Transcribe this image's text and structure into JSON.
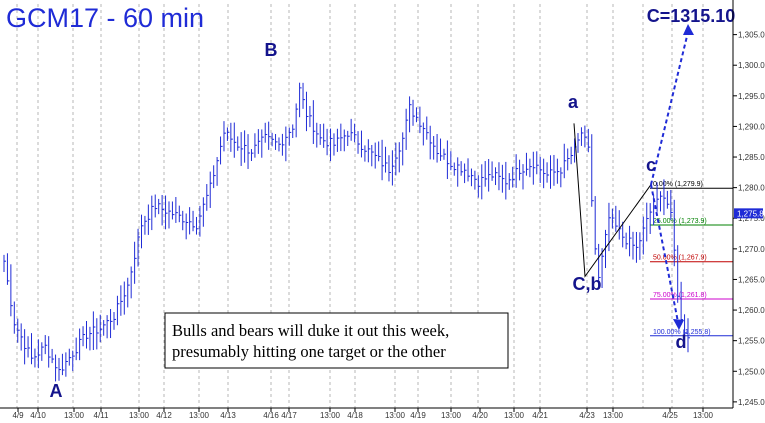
{
  "chart_data": {
    "type": "bar",
    "title": "GCM17 - 60 min",
    "ylim": [
      1244,
      1310
    ],
    "y_ticks": [
      1245,
      1250,
      1255,
      1260,
      1265,
      1270,
      1275,
      1280,
      1285,
      1290,
      1295,
      1300,
      1305
    ],
    "y_tick_labels": [
      "1,245.0",
      "1,250.0",
      "1,255.0",
      "1,260.0",
      "1,265.0",
      "1,270.0",
      "1,275.0",
      "1,280.0",
      "1,285.0",
      "1,290.0",
      "1,295.0",
      "1,300.0",
      "1,305.0"
    ],
    "x_tick_labels": [
      "4/9",
      "4/10",
      "13:00",
      "4/11",
      "13:00",
      "4/12",
      "13:00",
      "4/13",
      "4/16",
      "4/17",
      "13:00",
      "4/18",
      "13:00",
      "4/19",
      "13:00",
      "4/20",
      "13:00",
      "4/21",
      "4/23",
      "13:00",
      "4/25",
      "13:00"
    ],
    "last_price_label": "1,275.8",
    "last_price": 1275.8,
    "price_anchors": [
      [
        0,
        1268
      ],
      [
        3,
        1258
      ],
      [
        8,
        1252
      ],
      [
        12,
        1254
      ],
      [
        16,
        1250
      ],
      [
        20,
        1253
      ],
      [
        24,
        1256
      ],
      [
        28,
        1257
      ],
      [
        32,
        1259
      ],
      [
        36,
        1264
      ],
      [
        40,
        1274
      ],
      [
        44,
        1277
      ],
      [
        48,
        1276
      ],
      [
        52,
        1275
      ],
      [
        56,
        1274
      ],
      [
        60,
        1280
      ],
      [
        64,
        1289
      ],
      [
        68,
        1287
      ],
      [
        72,
        1286
      ],
      [
        76,
        1288
      ],
      [
        80,
        1287
      ],
      [
        84,
        1290
      ],
      [
        86,
        1296
      ],
      [
        88,
        1292
      ],
      [
        92,
        1288
      ],
      [
        96,
        1287
      ],
      [
        100,
        1289
      ],
      [
        104,
        1287
      ],
      [
        108,
        1285
      ],
      [
        112,
        1283
      ],
      [
        116,
        1288
      ],
      [
        118,
        1293
      ],
      [
        122,
        1290
      ],
      [
        126,
        1286
      ],
      [
        130,
        1284
      ],
      [
        134,
        1283
      ],
      [
        138,
        1281
      ],
      [
        142,
        1282
      ],
      [
        146,
        1281
      ],
      [
        150,
        1283
      ],
      [
        154,
        1284
      ],
      [
        158,
        1282
      ],
      [
        162,
        1283
      ],
      [
        166,
        1286
      ],
      [
        168,
        1289
      ],
      [
        170,
        1286
      ],
      [
        172,
        1270
      ],
      [
        173,
        1265
      ],
      [
        176,
        1275
      ],
      [
        180,
        1272
      ],
      [
        184,
        1270
      ],
      [
        188,
        1276
      ],
      [
        192,
        1279
      ],
      [
        194,
        1276
      ],
      [
        196,
        1262
      ],
      [
        198,
        1256
      ]
    ],
    "wave_labels": [
      {
        "text": "A",
        "price": 1248.5
      },
      {
        "text": "B",
        "price": 1298.5
      },
      {
        "text": "a",
        "price": 1290.5
      },
      {
        "text": "C,b",
        "price": 1265.5
      },
      {
        "text": "c",
        "price": 1280.5
      },
      {
        "text": "C=1315.10",
        "price": 1315.1
      },
      {
        "text": "d",
        "price": 1255.8
      }
    ],
    "fib_levels": [
      {
        "label": "0.00% (1,279.9)",
        "price": 1279.9,
        "color": "#000000"
      },
      {
        "label": "25.00% (1,273.9)",
        "price": 1273.9,
        "color": "#008000"
      },
      {
        "label": "50.00% (1,267.9)",
        "price": 1267.9,
        "color": "#c00000"
      },
      {
        "label": "75.00% (1,261.8)",
        "price": 1261.8,
        "color": "#cc00cc"
      },
      {
        "label": "100.00% (1,255.8)",
        "price": 1255.8,
        "color": "#1f2bd6"
      }
    ],
    "annotation": "Bulls and bears will duke it out this week,\npresumably hitting one target or the other",
    "colors": {
      "bars": "#1f2bd6",
      "axis": "#000000",
      "grid": "#888888",
      "labels": "#14148c",
      "arrows": "#1f2bd6"
    }
  }
}
